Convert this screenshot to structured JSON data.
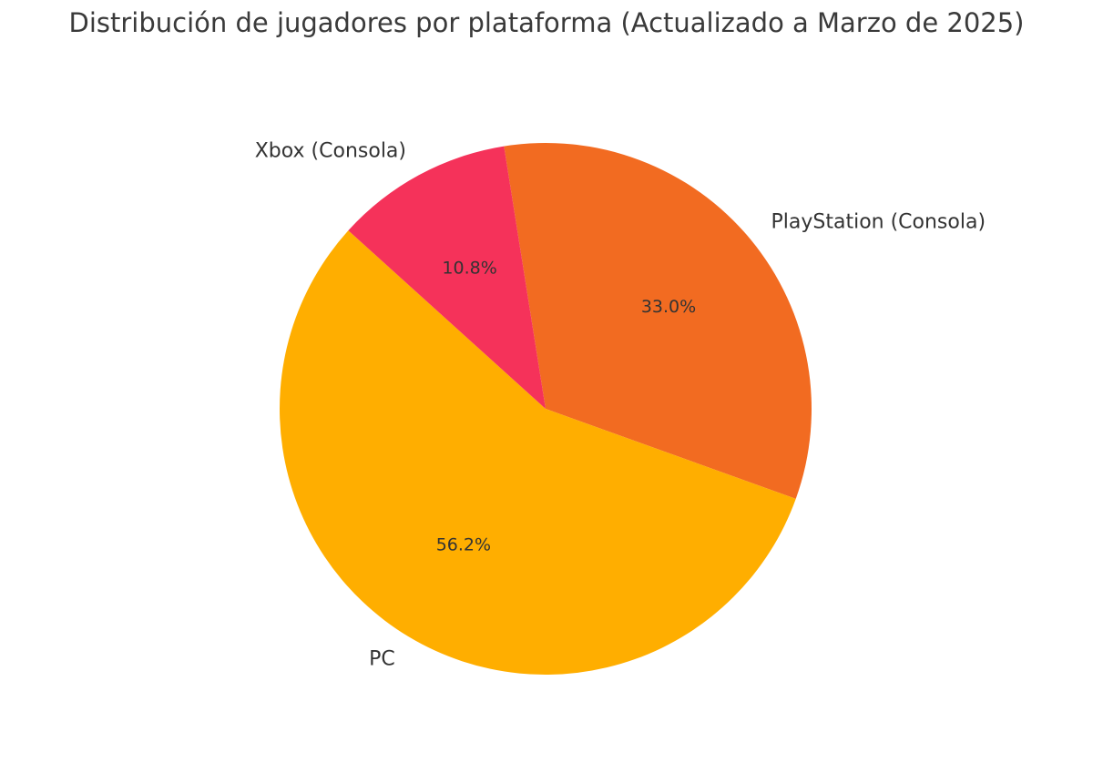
{
  "chart_data": {
    "type": "pie",
    "title": "Distribución de jugadores por plataforma (Actualizado a Marzo de 2025)",
    "categories": [
      "PlayStation (Consola)",
      "PC",
      "Xbox (Consola)"
    ],
    "values": [
      33.0,
      56.2,
      10.8
    ],
    "percent_labels": [
      "33.0%",
      "56.2%",
      "10.8%"
    ],
    "colors": [
      "#F26B21",
      "#FFAE00",
      "#F5325A"
    ],
    "start_angle_deg": 99,
    "direction": "clockwise"
  }
}
